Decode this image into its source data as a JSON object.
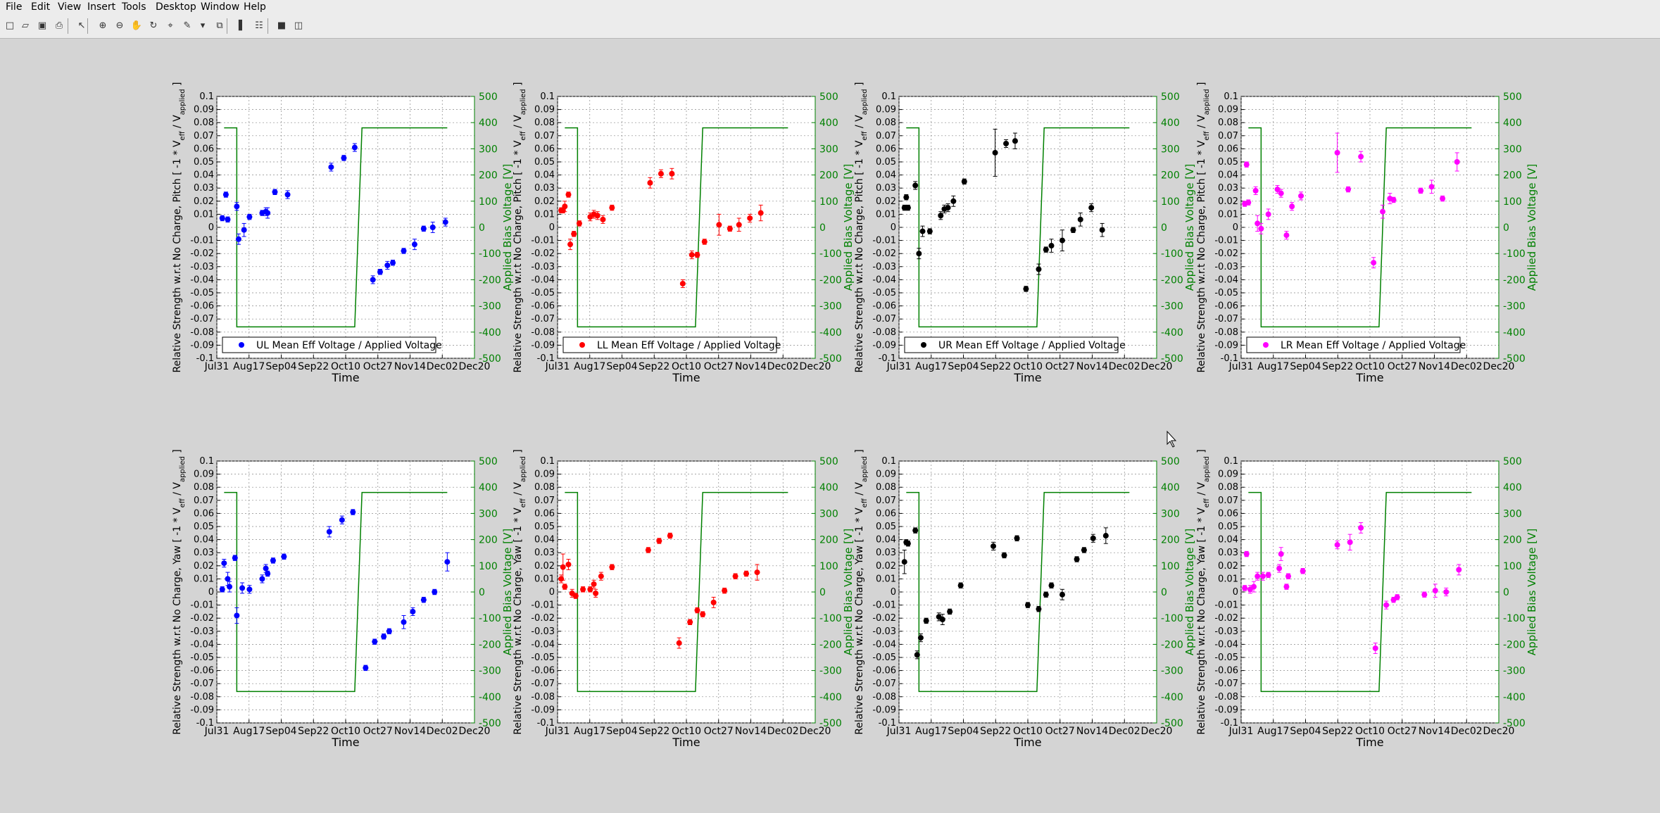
{
  "menu": [
    "File",
    "Edit",
    "View",
    "Insert",
    "Tools",
    "Desktop",
    "Window",
    "Help"
  ],
  "toolbar": {
    "buttons": [
      {
        "name": "new-figure-button",
        "icon": "new-file-icon",
        "glyph": "□"
      },
      {
        "name": "open-file-button",
        "icon": "folder-icon",
        "glyph": "▱"
      },
      {
        "name": "save-figure-button",
        "icon": "save-icon",
        "glyph": "▣"
      },
      {
        "name": "print-figure-button",
        "icon": "print-icon",
        "glyph": "⎙"
      },
      {
        "name": "edit-plot-button",
        "icon": "arrow-cursor-icon",
        "glyph": "↖"
      },
      {
        "name": "zoom-in-button",
        "icon": "zoom-in-icon",
        "glyph": "⊕"
      },
      {
        "name": "zoom-out-button",
        "icon": "zoom-out-icon",
        "glyph": "⊖"
      },
      {
        "name": "pan-button",
        "icon": "hand-icon",
        "glyph": "✋"
      },
      {
        "name": "rotate-3d-button",
        "icon": "rotate-icon",
        "glyph": "↻"
      },
      {
        "name": "data-cursor-button",
        "icon": "data-cursor-icon",
        "glyph": "⌖"
      },
      {
        "name": "brush-button",
        "icon": "brush-icon",
        "glyph": "✎"
      },
      {
        "name": "brush-dropdown",
        "icon": "chevron-down-icon",
        "glyph": "▾"
      },
      {
        "name": "link-plot-button",
        "icon": "link-plot-icon",
        "glyph": "⧉"
      },
      {
        "name": "colorbar-button",
        "icon": "colorbar-icon",
        "glyph": "▌"
      },
      {
        "name": "legend-button",
        "icon": "legend-icon",
        "glyph": "☷"
      },
      {
        "name": "hide-plot-tools-button",
        "icon": "hide-tools-icon",
        "glyph": "■"
      },
      {
        "name": "show-plot-tools-button",
        "icon": "show-tools-icon",
        "glyph": "◫"
      }
    ]
  },
  "colors": {
    "UL": "#0000ff",
    "LL": "#ff0000",
    "UR": "#000000",
    "LR": "#ff00ff",
    "bias": "#008000",
    "grid": "#888888",
    "axes_bg": "#ffffff",
    "figure_bg": "#d4d4d4"
  },
  "chart_data": [
    {
      "type": "scatter",
      "id": "UL-pitch",
      "color_key": "UL",
      "ylabel_prefix": "Relative Strength w.r.t No Charge, Pitch",
      "legend": "UL Mean Eff Voltage / Applied Voltage",
      "points": [
        [
          3,
          0.007,
          0.002
        ],
        [
          5,
          0.025,
          0.002
        ],
        [
          6,
          0.006,
          0.002
        ],
        [
          11,
          0.016,
          0.003
        ],
        [
          12,
          -0.009,
          0.004
        ],
        [
          15,
          -0.002,
          0.005
        ],
        [
          18,
          0.008,
          0.002
        ],
        [
          25,
          0.011,
          0.002
        ],
        [
          27,
          0.012,
          0.003
        ],
        [
          28,
          0.011,
          0.004
        ],
        [
          32,
          0.027,
          0.002
        ],
        [
          39,
          0.025,
          0.003
        ],
        [
          63,
          0.046,
          0.003
        ],
        [
          70,
          0.053,
          0.002
        ],
        [
          76,
          0.061,
          0.003
        ],
        [
          86,
          -0.04,
          0.003
        ],
        [
          90,
          -0.034,
          0.002
        ],
        [
          94,
          -0.029,
          0.003
        ],
        [
          97,
          -0.027,
          0.002
        ],
        [
          103,
          -0.018,
          0.002
        ],
        [
          109,
          -0.013,
          0.004
        ],
        [
          114,
          -0.001,
          0.002
        ],
        [
          119,
          0.0,
          0.004
        ],
        [
          126,
          0.004,
          0.003
        ]
      ]
    },
    {
      "type": "scatter",
      "id": "LL-pitch",
      "color_key": "LL",
      "ylabel_prefix": "Relative Strength w.r.t No Charge, Pitch",
      "legend": "LL Mean Eff Voltage / Applied Voltage",
      "points": [
        [
          2,
          0.013,
          0.002
        ],
        [
          3,
          0.013,
          0.002
        ],
        [
          4,
          0.016,
          0.004
        ],
        [
          6,
          0.025,
          0.002
        ],
        [
          7,
          -0.013,
          0.004
        ],
        [
          9,
          -0.005,
          0.002
        ],
        [
          12,
          0.003,
          0.002
        ],
        [
          18,
          0.008,
          0.003
        ],
        [
          20,
          0.01,
          0.003
        ],
        [
          22,
          0.009,
          0.003
        ],
        [
          25,
          0.006,
          0.003
        ],
        [
          30,
          0.015,
          0.002
        ],
        [
          51,
          0.034,
          0.004
        ],
        [
          57,
          0.041,
          0.003
        ],
        [
          63,
          0.041,
          0.004
        ],
        [
          69,
          -0.043,
          0.003
        ],
        [
          74,
          -0.021,
          0.003
        ],
        [
          77,
          -0.021,
          0.002
        ],
        [
          81,
          -0.011,
          0.002
        ],
        [
          89,
          0.002,
          0.008
        ],
        [
          95,
          -0.001,
          0.002
        ],
        [
          100,
          0.002,
          0.005
        ],
        [
          106,
          0.007,
          0.003
        ],
        [
          112,
          0.011,
          0.006
        ]
      ]
    },
    {
      "type": "scatter",
      "id": "UR-pitch",
      "color_key": "UR",
      "ylabel_prefix": "Relative Strength w.r.t No Charge, Pitch",
      "legend": "UR Mean Eff Voltage / Applied Voltage",
      "points": [
        [
          3,
          0.015,
          0.002
        ],
        [
          4,
          0.023,
          0.002
        ],
        [
          5,
          0.015,
          0.002
        ],
        [
          9,
          0.032,
          0.003
        ],
        [
          11,
          -0.02,
          0.004
        ],
        [
          13,
          -0.003,
          0.004
        ],
        [
          17,
          -0.003,
          0.002
        ],
        [
          23,
          0.009,
          0.003
        ],
        [
          25,
          0.014,
          0.003
        ],
        [
          27,
          0.015,
          0.003
        ],
        [
          30,
          0.02,
          0.004
        ],
        [
          36,
          0.035,
          0.002
        ],
        [
          53,
          0.057,
          0.018
        ],
        [
          59,
          0.064,
          0.003
        ],
        [
          64,
          0.066,
          0.006
        ],
        [
          70,
          -0.047,
          0.002
        ],
        [
          77,
          -0.032,
          0.004
        ],
        [
          81,
          -0.017,
          0.002
        ],
        [
          84,
          -0.014,
          0.005
        ],
        [
          90,
          -0.01,
          0.008
        ],
        [
          96,
          -0.002,
          0.002
        ],
        [
          100,
          0.006,
          0.005
        ],
        [
          106,
          0.015,
          0.003
        ],
        [
          112,
          -0.002,
          0.005
        ]
      ]
    },
    {
      "type": "scatter",
      "id": "LR-pitch",
      "color_key": "LR",
      "ylabel_prefix": "Relative Strength w.r.t No Charge, Pitch",
      "legend": "LR Mean Eff Voltage / Applied Voltage",
      "points": [
        [
          2,
          0.018,
          0.002
        ],
        [
          3,
          0.048,
          0.002
        ],
        [
          4,
          0.019,
          0.002
        ],
        [
          8,
          0.028,
          0.003
        ],
        [
          9,
          0.003,
          0.006
        ],
        [
          11,
          -0.001,
          0.004
        ],
        [
          15,
          0.01,
          0.004
        ],
        [
          20,
          0.029,
          0.003
        ],
        [
          22,
          0.026,
          0.003
        ],
        [
          25,
          -0.006,
          0.003
        ],
        [
          28,
          0.016,
          0.003
        ],
        [
          33,
          0.024,
          0.003
        ],
        [
          53,
          0.057,
          0.015
        ],
        [
          59,
          0.029,
          0.002
        ],
        [
          66,
          0.054,
          0.004
        ],
        [
          73,
          -0.027,
          0.004
        ],
        [
          78,
          0.012,
          0.005
        ],
        [
          82,
          0.022,
          0.004
        ],
        [
          84,
          0.021,
          0.002
        ],
        [
          99,
          0.028,
          0.002
        ],
        [
          105,
          0.031,
          0.005
        ],
        [
          111,
          0.022,
          0.002
        ],
        [
          119,
          0.05,
          0.007
        ]
      ]
    },
    {
      "type": "scatter",
      "id": "UL-yaw",
      "color_key": "UL",
      "ylabel_prefix": "Relative Strength w.r.t No Charge, Yaw",
      "points": [
        [
          3,
          0.002,
          0.002
        ],
        [
          4,
          0.022,
          0.003
        ],
        [
          6,
          0.01,
          0.005
        ],
        [
          7,
          0.004,
          0.004
        ],
        [
          10,
          0.026,
          0.002
        ],
        [
          11,
          -0.018,
          0.006
        ],
        [
          14,
          0.003,
          0.004
        ],
        [
          18,
          0.002,
          0.003
        ],
        [
          25,
          0.01,
          0.003
        ],
        [
          27,
          0.018,
          0.003
        ],
        [
          28,
          0.014,
          0.002
        ],
        [
          31,
          0.024,
          0.002
        ],
        [
          37,
          0.027,
          0.002
        ],
        [
          62,
          0.046,
          0.004
        ],
        [
          69,
          0.055,
          0.003
        ],
        [
          75,
          0.061,
          0.002
        ],
        [
          82,
          -0.058,
          0.002
        ],
        [
          87,
          -0.038,
          0.002
        ],
        [
          92,
          -0.034,
          0.002
        ],
        [
          95,
          -0.03,
          0.002
        ],
        [
          103,
          -0.023,
          0.005
        ],
        [
          108,
          -0.015,
          0.003
        ],
        [
          114,
          -0.006,
          0.002
        ],
        [
          120,
          0.0,
          0.002
        ],
        [
          127,
          0.023,
          0.007
        ]
      ]
    },
    {
      "type": "scatter",
      "id": "LL-yaw",
      "color_key": "LL",
      "ylabel_prefix": "Relative Strength w.r.t No Charge, Yaw",
      "points": [
        [
          2,
          0.01,
          0.003
        ],
        [
          3,
          0.019,
          0.01
        ],
        [
          4,
          0.004,
          0.002
        ],
        [
          6,
          0.021,
          0.004
        ],
        [
          8,
          -0.001,
          0.003
        ],
        [
          10,
          -0.003,
          0.002
        ],
        [
          14,
          0.002,
          0.002
        ],
        [
          18,
          0.002,
          0.002
        ],
        [
          20,
          0.006,
          0.003
        ],
        [
          21,
          -0.001,
          0.003
        ],
        [
          24,
          0.012,
          0.003
        ],
        [
          30,
          0.019,
          0.002
        ],
        [
          50,
          0.032,
          0.002
        ],
        [
          56,
          0.039,
          0.002
        ],
        [
          62,
          0.043,
          0.002
        ],
        [
          67,
          -0.039,
          0.004
        ],
        [
          73,
          -0.023,
          0.002
        ],
        [
          77,
          -0.014,
          0.002
        ],
        [
          80,
          -0.017,
          0.002
        ],
        [
          86,
          -0.008,
          0.004
        ],
        [
          92,
          0.001,
          0.002
        ],
        [
          98,
          0.012,
          0.002
        ],
        [
          104,
          0.014,
          0.002
        ],
        [
          110,
          0.015,
          0.006
        ]
      ]
    },
    {
      "type": "scatter",
      "id": "UR-yaw",
      "color_key": "UR",
      "ylabel_prefix": "Relative Strength w.r.t No Charge, Yaw",
      "points": [
        [
          3,
          0.023,
          0.009
        ],
        [
          4,
          0.038,
          0.002
        ],
        [
          5,
          0.037,
          0.002
        ],
        [
          9,
          0.047,
          0.002
        ],
        [
          10,
          -0.048,
          0.003
        ],
        [
          12,
          -0.035,
          0.003
        ],
        [
          15,
          -0.022,
          0.002
        ],
        [
          22,
          -0.019,
          0.003
        ],
        [
          24,
          -0.021,
          0.004
        ],
        [
          28,
          -0.015,
          0.002
        ],
        [
          34,
          0.005,
          0.002
        ],
        [
          52,
          0.035,
          0.003
        ],
        [
          58,
          0.028,
          0.002
        ],
        [
          65,
          0.041,
          0.002
        ],
        [
          71,
          -0.01,
          0.002
        ],
        [
          77,
          -0.013,
          0.002
        ],
        [
          81,
          -0.002,
          0.002
        ],
        [
          84,
          0.005,
          0.002
        ],
        [
          90,
          -0.002,
          0.004
        ],
        [
          98,
          0.025,
          0.002
        ],
        [
          102,
          0.032,
          0.002
        ],
        [
          107,
          0.041,
          0.003
        ],
        [
          114,
          0.043,
          0.006
        ]
      ]
    },
    {
      "type": "scatter",
      "id": "LR-yaw",
      "color_key": "LR",
      "ylabel_prefix": "Relative Strength w.r.t No Charge, Yaw",
      "points": [
        [
          2,
          0.003,
          0.002
        ],
        [
          3,
          0.029,
          0.002
        ],
        [
          5,
          0.002,
          0.003
        ],
        [
          7,
          0.004,
          0.004
        ],
        [
          9,
          0.012,
          0.003
        ],
        [
          12,
          0.012,
          0.003
        ],
        [
          15,
          0.013,
          0.002
        ],
        [
          21,
          0.018,
          0.003
        ],
        [
          22,
          0.029,
          0.005
        ],
        [
          25,
          0.004,
          0.002
        ],
        [
          26,
          0.012,
          0.002
        ],
        [
          34,
          0.016,
          0.002
        ],
        [
          53,
          0.036,
          0.003
        ],
        [
          60,
          0.038,
          0.006
        ],
        [
          66,
          0.049,
          0.004
        ],
        [
          74,
          -0.043,
          0.004
        ],
        [
          80,
          -0.01,
          0.003
        ],
        [
          84,
          -0.006,
          0.002
        ],
        [
          86,
          -0.004,
          0.002
        ],
        [
          101,
          -0.002,
          0.002
        ],
        [
          107,
          0.001,
          0.005
        ],
        [
          113,
          0.0,
          0.003
        ],
        [
          120,
          0.017,
          0.004
        ]
      ]
    }
  ],
  "axes": {
    "xlabel": "Time",
    "ylabel_suffix_main": "[ -1 * V",
    "ylabel_sub1": "eff",
    "ylabel_mid": " / V",
    "ylabel_sub2": "applied",
    "ylabel_end": " ]",
    "ylabel_right": "Applied Bias Voltage [V]",
    "xticks": [
      "Jul31",
      "Aug17",
      "Sep04",
      "Sep22",
      "Oct10",
      "Oct27",
      "Nov14",
      "Dec02",
      "Dec20"
    ],
    "xlim": [
      0,
      142
    ],
    "ylim": [
      -0.1,
      0.1
    ],
    "ylim_right": [
      -500,
      500
    ],
    "yticks_left": [
      "-0.1",
      "-0.09",
      "-0.08",
      "-0.07",
      "-0.06",
      "-0.05",
      "-0.04",
      "-0.03",
      "-0.02",
      "-0.01",
      "0",
      "0.01",
      "0.02",
      "0.03",
      "0.04",
      "0.05",
      "0.06",
      "0.07",
      "0.08",
      "0.09",
      "0.1"
    ],
    "yticks_right": [
      "-500",
      "-400",
      "-300",
      "-200",
      "-100",
      "0",
      "100",
      "200",
      "300",
      "400",
      "500"
    ],
    "grid": true,
    "legend_location": "south"
  },
  "bias_voltage": {
    "type": "line",
    "color_key": "bias",
    "points": [
      [
        4,
        380
      ],
      [
        11,
        380
      ],
      [
        11,
        -380
      ],
      [
        76,
        -380
      ],
      [
        80,
        380
      ],
      [
        127,
        380
      ]
    ]
  }
}
